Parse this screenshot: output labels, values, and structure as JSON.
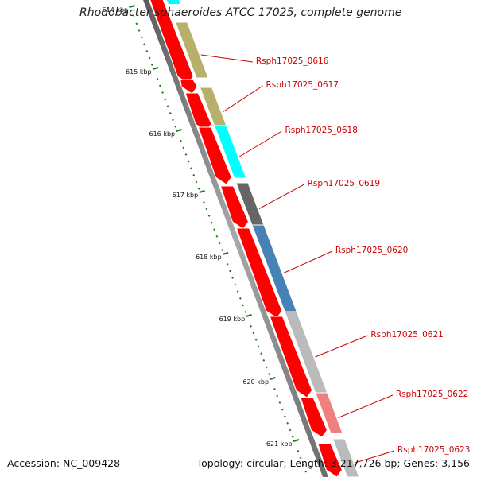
{
  "header": {
    "title": "Rhodobacter sphaeroides ATCC 17025, complete genome"
  },
  "footer": {
    "accession": "Accession: NC_009428",
    "summary": "Topology: circular; Length: 3,217,726 bp; Genes: 3,156"
  },
  "map": {
    "kbp_ticks": [
      "614 kbp",
      "615 kbp",
      "616 kbp",
      "617 kbp",
      "618 kbp",
      "619 kbp",
      "620 kbp",
      "621 kbp"
    ],
    "genes": [
      {
        "label": "Rsph17025_0616",
        "color": "#b7b06a"
      },
      {
        "label": "Rsph17025_0617",
        "color": "#b7b06a"
      },
      {
        "label": "Rsph17025_0618",
        "color": "#00ffff"
      },
      {
        "label": "Rsph17025_0619",
        "color": "#666666"
      },
      {
        "label": "Rsph17025_0620",
        "color": "#4682b4"
      },
      {
        "label": "Rsph17025_0621",
        "color": "#bbbbbb"
      },
      {
        "label": "Rsph17025_0622",
        "color": "#f08080"
      },
      {
        "label": "Rsph17025_0623",
        "color": "#bbbbbb"
      }
    ],
    "colors": {
      "cds": "#ff0000",
      "backbone": "#808080",
      "tick": "#1a7a1a",
      "label": "#cc0000"
    }
  }
}
